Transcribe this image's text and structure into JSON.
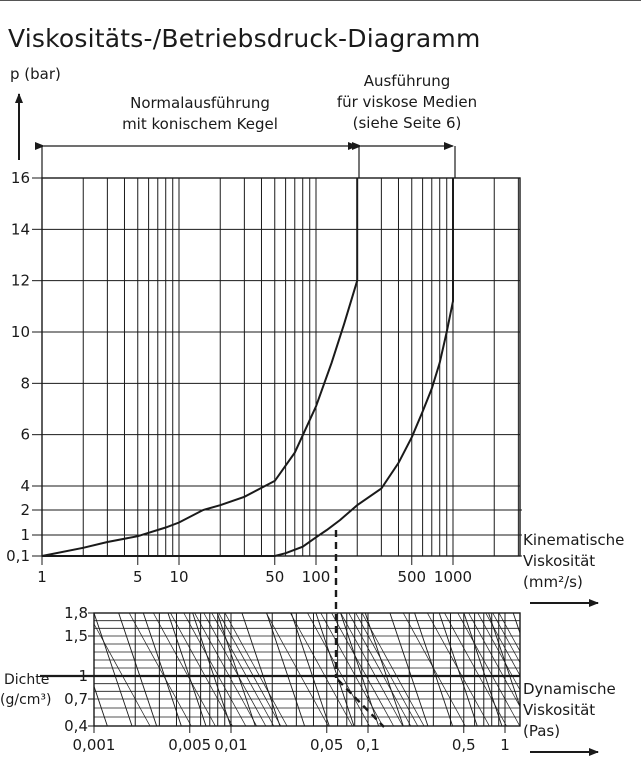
{
  "title": "Viskositäts-/Betriebsdruck-Diagramm",
  "upper": {
    "y_axis_label": "p (bar)",
    "y_ticks": [
      "16",
      "14",
      "12",
      "10",
      "8",
      "6",
      "4",
      "2",
      "1",
      "0,1"
    ],
    "x_ticks": [
      "1",
      "5",
      "10",
      "50",
      "100",
      "500",
      "1000"
    ],
    "x_axis_label": [
      "Kinematische",
      "Viskosität",
      "(mm²/s)"
    ],
    "region_left": [
      "Normalausführung",
      "mit konischem Kegel"
    ],
    "region_right": [
      "Ausführung",
      "für viskose Medien",
      "(siehe Seite 6)"
    ]
  },
  "lower": {
    "y_axis_label": [
      "Dichte",
      "(g/cm³)"
    ],
    "y_ticks": [
      "1,8",
      "1,5",
      "1",
      "0,7",
      "0,4"
    ],
    "x_ticks": [
      "0,001",
      "0,005",
      "0,01",
      "0,05",
      "0,1",
      "0,5",
      "1"
    ],
    "x_axis_label": [
      "Dynamische",
      "Viskosität",
      "(Pas)"
    ]
  },
  "chart_data": [
    {
      "type": "line",
      "title": "Viskositäts-/Betriebsdruck-Diagramm",
      "xlabel": "Kinematische Viskosität (mm²/s)",
      "ylabel": "p (bar)",
      "x_scale": "log",
      "xlim": [
        1,
        3000
      ],
      "ylim": [
        0.1,
        16
      ],
      "y_scale": "custom",
      "grid": true,
      "series": [
        {
          "x": [
            1,
            2,
            3,
            5,
            8,
            10,
            15,
            20,
            30,
            50,
            70,
            100,
            130,
            160,
            200,
            200
          ],
          "y": [
            0.1,
            0.45,
            0.7,
            0.95,
            1.3,
            1.5,
            2.0,
            2.4,
            3.1,
            4.2,
            5.3,
            7.1,
            8.8,
            10.3,
            12,
            16
          ]
        },
        {
          "x": [
            1,
            50,
            60,
            80,
            100,
            120,
            150,
            200,
            300,
            400,
            500,
            600,
            700,
            800,
            900,
            1000,
            1000
          ],
          "y": [
            0.1,
            0.1,
            0.22,
            0.5,
            0.9,
            1.2,
            1.6,
            2.4,
            3.8,
            4.9,
            5.9,
            6.9,
            7.8,
            8.8,
            10.0,
            11.2,
            16
          ]
        }
      ]
    },
    {
      "type": "line",
      "xlabel": "Dynamische Viskosität (Pas)",
      "ylabel": "Dichte (g/cm³)",
      "x_scale": "log",
      "xlim": [
        0.001,
        1
      ],
      "ylim": [
        0.4,
        1.8
      ],
      "y_ticks": [
        1.8,
        1.5,
        1,
        0.7,
        0.4
      ],
      "grid": true
    }
  ]
}
